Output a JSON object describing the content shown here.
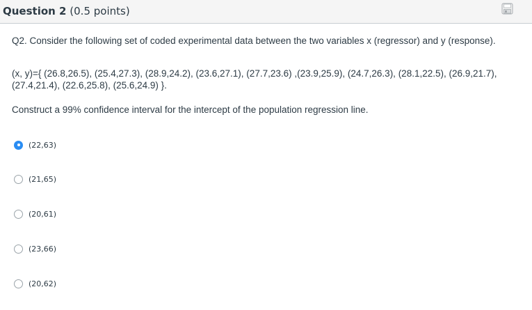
{
  "header": {
    "question_label": "Question 2",
    "points": "(0.5 points)",
    "save_icon": "floppy-disk-icon"
  },
  "question": {
    "intro": "Q2.  Consider the following set of coded experimental data between the two variables x (regressor) and y (response).",
    "data": "(x, y)={ (26.8,26.5), (25.4,27.3), (28.9,24.2), (23.6,27.1), (27.7,23.6) ,(23.9,25.9), (24.7,26.3), (28.1,22.5), (26.9,21.7), (27.4,21.4), (22.6,25.8), (25.6,24.9) }.",
    "prompt": "Construct a 99% confidence interval for the intercept of the population regression line."
  },
  "answers": [
    {
      "label": "(22,63)",
      "selected": true
    },
    {
      "label": "(21,65)",
      "selected": false
    },
    {
      "label": "(20,61)",
      "selected": false
    },
    {
      "label": "(23,66)",
      "selected": false
    },
    {
      "label": "(20,62)",
      "selected": false
    }
  ],
  "colors": {
    "accent": "#2a8df3",
    "text": "#2d3b45",
    "header_bg": "#f5f5f5"
  }
}
